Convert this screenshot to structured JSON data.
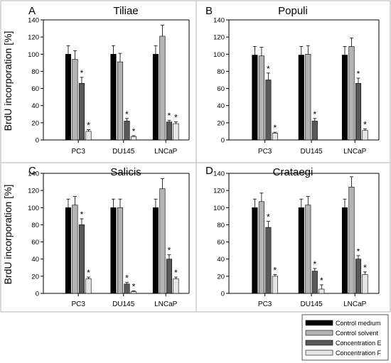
{
  "figure": {
    "ylabel": "BrdU incorporation [%]",
    "legend": {
      "position": "bottom-right",
      "entries": [
        {
          "name": "Control medium",
          "color": "#000000"
        },
        {
          "name": "Control solvent",
          "color": "#b3b3b3"
        },
        {
          "name": "Concentration E",
          "color": "#595959"
        },
        {
          "name": "Concentration F",
          "color": "#e6e6e6"
        }
      ]
    }
  },
  "chart_data": [
    {
      "type": "bar",
      "panel_letter": "A",
      "title": "Tiliae",
      "categories": [
        "PC3",
        "DU145",
        "LNCaP"
      ],
      "ylim": [
        0,
        140
      ],
      "yticks": [
        0,
        20,
        40,
        60,
        80,
        100,
        120,
        140
      ],
      "series": [
        {
          "name": "Control medium",
          "values": [
            100,
            100,
            100
          ],
          "errors": [
            10,
            10,
            10
          ],
          "significant": [
            false,
            false,
            false
          ]
        },
        {
          "name": "Control solvent",
          "values": [
            94,
            91,
            121
          ],
          "errors": [
            10,
            10,
            13
          ],
          "significant": [
            false,
            false,
            false
          ]
        },
        {
          "name": "Concentration E",
          "values": [
            66,
            22,
            21
          ],
          "errors": [
            7,
            3,
            2
          ],
          "significant": [
            true,
            true,
            true
          ]
        },
        {
          "name": "Concentration F",
          "values": [
            10,
            4,
            19
          ],
          "errors": [
            2,
            1,
            2
          ],
          "significant": [
            true,
            true,
            true
          ]
        }
      ]
    },
    {
      "type": "bar",
      "panel_letter": "B",
      "title": "Populi",
      "categories": [
        "PC3",
        "DU145",
        "LNCaP"
      ],
      "ylim": [
        0,
        140
      ],
      "yticks": [
        0,
        20,
        40,
        60,
        80,
        100,
        120,
        140
      ],
      "series": [
        {
          "name": "Control medium",
          "values": [
            99,
            99,
            99
          ],
          "errors": [
            10,
            10,
            10
          ],
          "significant": [
            false,
            false,
            false
          ]
        },
        {
          "name": "Control solvent",
          "values": [
            98,
            100,
            109
          ],
          "errors": [
            10,
            10,
            10
          ],
          "significant": [
            false,
            false,
            false
          ]
        },
        {
          "name": "Concentration E",
          "values": [
            70,
            22,
            66
          ],
          "errors": [
            8,
            3,
            6
          ],
          "significant": [
            true,
            true,
            true
          ]
        },
        {
          "name": "Concentration F",
          "values": [
            8,
            0,
            11
          ],
          "errors": [
            1,
            0,
            2
          ],
          "significant": [
            true,
            false,
            true
          ]
        }
      ]
    },
    {
      "type": "bar",
      "panel_letter": "C",
      "title": "Salicis",
      "categories": [
        "PC3",
        "DU145",
        "LNCaP"
      ],
      "ylim": [
        0,
        140
      ],
      "yticks": [
        0,
        20,
        40,
        60,
        80,
        100,
        120,
        140
      ],
      "series": [
        {
          "name": "Control medium",
          "values": [
            100,
            100,
            100
          ],
          "errors": [
            10,
            10,
            10
          ],
          "significant": [
            false,
            false,
            false
          ]
        },
        {
          "name": "Control solvent",
          "values": [
            103,
            100,
            122
          ],
          "errors": [
            10,
            10,
            12
          ],
          "significant": [
            false,
            false,
            false
          ]
        },
        {
          "name": "Concentration E",
          "values": [
            80,
            11,
            40
          ],
          "errors": [
            7,
            2,
            5
          ],
          "significant": [
            true,
            true,
            true
          ]
        },
        {
          "name": "Concentration F",
          "values": [
            17,
            2,
            17
          ],
          "errors": [
            2,
            1,
            2
          ],
          "significant": [
            true,
            true,
            true
          ]
        }
      ]
    },
    {
      "type": "bar",
      "panel_letter": "D",
      "title": "Crataegi",
      "categories": [
        "PC3",
        "DU145",
        "LNCaP"
      ],
      "ylim": [
        0,
        140
      ],
      "yticks": [
        0,
        20,
        40,
        60,
        80,
        100,
        120,
        140
      ],
      "series": [
        {
          "name": "Control medium",
          "values": [
            100,
            100,
            100
          ],
          "errors": [
            10,
            10,
            10
          ],
          "significant": [
            false,
            false,
            false
          ]
        },
        {
          "name": "Control solvent",
          "values": [
            107,
            103,
            124
          ],
          "errors": [
            10,
            10,
            12
          ],
          "significant": [
            false,
            false,
            false
          ]
        },
        {
          "name": "Concentration E",
          "values": [
            77,
            26,
            40
          ],
          "errors": [
            7,
            3,
            4
          ],
          "significant": [
            true,
            true,
            true
          ]
        },
        {
          "name": "Concentration F",
          "values": [
            20,
            5,
            22
          ],
          "errors": [
            2,
            5,
            3
          ],
          "significant": [
            true,
            true,
            true
          ]
        }
      ]
    }
  ]
}
